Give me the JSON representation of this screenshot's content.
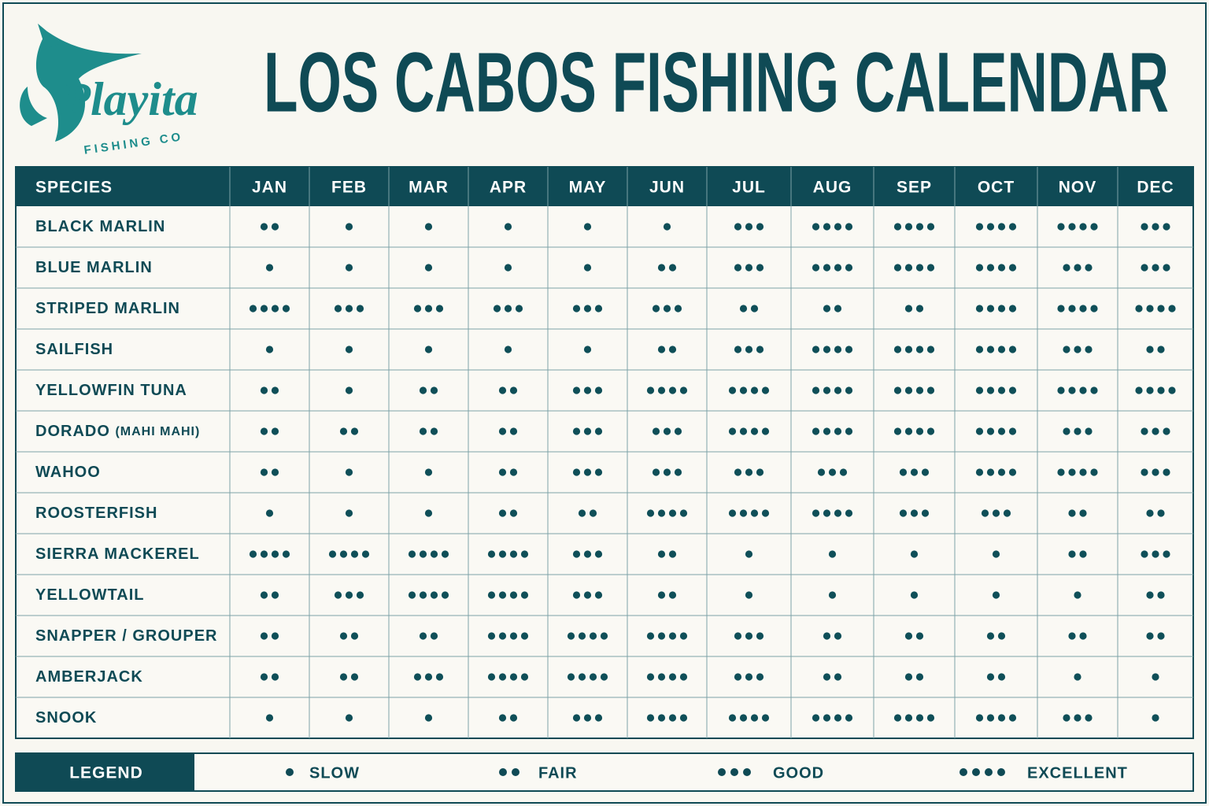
{
  "logo": {
    "brand": "Playita",
    "tagline": "FISHING CO"
  },
  "title": "LOS CABOS FISHING CALENDAR",
  "table": {
    "header": {
      "species": "SPECIES",
      "months": [
        "JAN",
        "FEB",
        "MAR",
        "APR",
        "MAY",
        "JUN",
        "JUL",
        "AUG",
        "SEP",
        "OCT",
        "NOV",
        "DEC"
      ]
    },
    "rows": [
      {
        "species": "BLACK MARLIN",
        "ratings": [
          2,
          1,
          1,
          1,
          1,
          1,
          3,
          4,
          4,
          4,
          4,
          3
        ]
      },
      {
        "species": "BLUE MARLIN",
        "ratings": [
          1,
          1,
          1,
          1,
          1,
          2,
          3,
          4,
          4,
          4,
          3,
          3
        ]
      },
      {
        "species": "STRIPED MARLIN",
        "ratings": [
          4,
          3,
          3,
          3,
          3,
          3,
          2,
          2,
          2,
          4,
          4,
          4
        ]
      },
      {
        "species": "SAILFISH",
        "ratings": [
          1,
          1,
          1,
          1,
          1,
          2,
          3,
          4,
          4,
          4,
          3,
          2
        ]
      },
      {
        "species": "YELLOWFIN TUNA",
        "ratings": [
          2,
          1,
          2,
          2,
          3,
          4,
          4,
          4,
          4,
          4,
          4,
          4
        ]
      },
      {
        "species": "DORADO",
        "note": "(MAHI MAHI)",
        "ratings": [
          2,
          2,
          2,
          2,
          3,
          3,
          4,
          4,
          4,
          4,
          3,
          3
        ]
      },
      {
        "species": "WAHOO",
        "ratings": [
          2,
          1,
          1,
          2,
          3,
          3,
          3,
          3,
          3,
          4,
          4,
          3
        ]
      },
      {
        "species": "ROOSTERFISH",
        "ratings": [
          1,
          1,
          1,
          2,
          2,
          4,
          4,
          4,
          3,
          3,
          2,
          2
        ]
      },
      {
        "species": "SIERRA MACKEREL",
        "ratings": [
          4,
          4,
          4,
          4,
          3,
          2,
          1,
          1,
          1,
          1,
          2,
          3
        ]
      },
      {
        "species": "YELLOWTAIL",
        "ratings": [
          2,
          3,
          4,
          4,
          3,
          2,
          1,
          1,
          1,
          1,
          1,
          2
        ]
      },
      {
        "species": "SNAPPER / GROUPER",
        "ratings": [
          2,
          2,
          2,
          4,
          4,
          4,
          3,
          2,
          2,
          2,
          2,
          2
        ]
      },
      {
        "species": "AMBERJACK",
        "ratings": [
          2,
          2,
          3,
          4,
          4,
          4,
          3,
          2,
          2,
          2,
          1,
          1
        ]
      },
      {
        "species": "SNOOK",
        "ratings": [
          1,
          1,
          1,
          2,
          3,
          4,
          4,
          4,
          4,
          4,
          3,
          1
        ]
      }
    ]
  },
  "legend": {
    "title": "LEGEND",
    "items": [
      {
        "dots": 1,
        "label": "SLOW"
      },
      {
        "dots": 2,
        "label": "FAIR"
      },
      {
        "dots": 3,
        "label": "GOOD"
      },
      {
        "dots": 4,
        "label": "EXCELLENT"
      }
    ]
  }
}
